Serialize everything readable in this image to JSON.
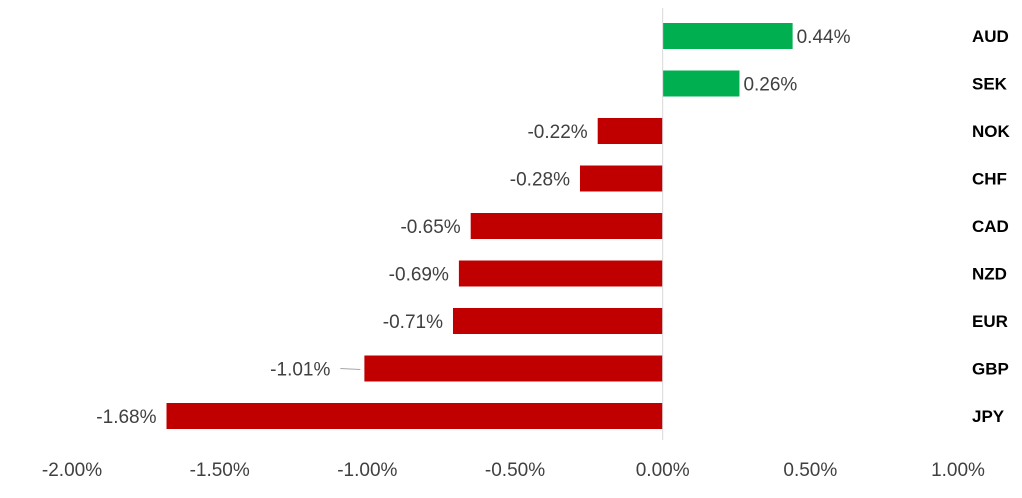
{
  "chart_data": {
    "type": "bar",
    "orientation": "horizontal",
    "categories": [
      "AUD",
      "SEK",
      "NOK",
      "CHF",
      "CAD",
      "NZD",
      "EUR",
      "GBP",
      "JPY"
    ],
    "values": [
      0.44,
      0.26,
      -0.22,
      -0.28,
      -0.65,
      -0.69,
      -0.71,
      -1.01,
      -1.68
    ],
    "data_labels": [
      "0.44%",
      "0.26%",
      "-0.22%",
      "-0.28%",
      "-0.65%",
      "-0.69%",
      "-0.71%",
      "-1.01%",
      "-1.68%"
    ],
    "x_ticks": [
      -2.0,
      -1.5,
      -1.0,
      -0.5,
      0.0,
      0.5,
      1.0
    ],
    "x_tick_labels": [
      "-2.00%",
      "-1.50%",
      "-1.00%",
      "-0.50%",
      "0.00%",
      "0.50%",
      "1.00%"
    ],
    "xlim": [
      -2.0,
      1.0
    ],
    "unit": "%",
    "title": "",
    "xlabel": "",
    "ylabel": "",
    "grid": false,
    "legend": "none",
    "colors": {
      "positive": "#00B050",
      "negative": "#C00000",
      "axis": "#D9D9D9",
      "text": "#404040"
    }
  }
}
